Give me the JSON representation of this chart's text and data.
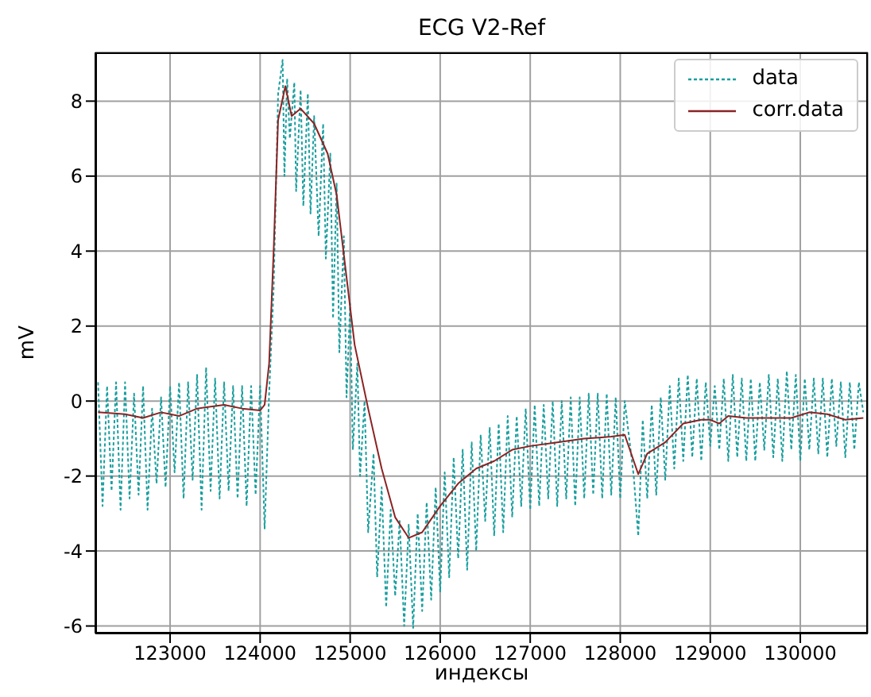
{
  "chart_data": {
    "type": "line",
    "title": "ECG V2-Ref",
    "xlabel": "индексы",
    "ylabel": "mV",
    "xlim": [
      122170,
      130750
    ],
    "ylim": [
      -6.2,
      9.3
    ],
    "xticks": [
      123000,
      124000,
      125000,
      126000,
      127000,
      128000,
      129000,
      130000
    ],
    "yticks": [
      -6,
      -4,
      -2,
      0,
      2,
      4,
      6,
      8
    ],
    "grid": true,
    "legend": "top right",
    "series": [
      {
        "name": "data",
        "color": "#1a9e9e",
        "line_style": "dotted",
        "x": [
          122200,
          122250,
          122300,
          122350,
          122400,
          122450,
          122500,
          122550,
          122600,
          122650,
          122700,
          122750,
          122800,
          122850,
          122900,
          122950,
          123000,
          123050,
          123100,
          123150,
          123200,
          123250,
          123300,
          123350,
          123400,
          123450,
          123500,
          123550,
          123600,
          123650,
          123700,
          123750,
          123800,
          123850,
          123900,
          123950,
          124000,
          124050,
          124100,
          124150,
          124200,
          124250,
          124270,
          124300,
          124330,
          124380,
          124400,
          124450,
          124480,
          124530,
          124560,
          124600,
          124650,
          124700,
          124730,
          124780,
          124810,
          124850,
          124880,
          124930,
          124960,
          125000,
          125030,
          125080,
          125110,
          125160,
          125200,
          125260,
          125300,
          125350,
          125400,
          125450,
          125500,
          125550,
          125600,
          125650,
          125700,
          125750,
          125800,
          125850,
          125900,
          125950,
          126000,
          126050,
          126100,
          126150,
          126200,
          126250,
          126300,
          126350,
          126400,
          126450,
          126500,
          126550,
          126600,
          126650,
          126700,
          126750,
          126800,
          126850,
          126900,
          126950,
          127000,
          127050,
          127100,
          127150,
          127200,
          127250,
          127300,
          127350,
          127400,
          127450,
          127500,
          127550,
          127600,
          127650,
          127700,
          127750,
          127800,
          127850,
          127900,
          127950,
          128000,
          128050,
          128150,
          128200,
          128250,
          128300,
          128350,
          128400,
          128450,
          128500,
          128550,
          128600,
          128650,
          128700,
          128750,
          128800,
          128850,
          128900,
          128950,
          129000,
          129050,
          129100,
          129150,
          129200,
          129250,
          129300,
          129350,
          129400,
          129450,
          129500,
          129550,
          129600,
          129650,
          129700,
          129750,
          129800,
          129850,
          129900,
          129950,
          130000,
          130050,
          130100,
          130150,
          130200,
          130250,
          130300,
          130350,
          130400,
          130450,
          130500,
          130550,
          130600,
          130650,
          130700
        ],
        "values": [
          0.5,
          -2.8,
          0.4,
          -2.4,
          0.5,
          -2.9,
          0.5,
          -2.6,
          0.2,
          -2.5,
          0.4,
          -2.9,
          -0.2,
          -2.2,
          0.1,
          -2.3,
          0.4,
          -1.9,
          0.5,
          -2.6,
          0.5,
          -2.1,
          0.7,
          -2.9,
          0.9,
          -2.4,
          0.6,
          -2.6,
          0.5,
          -2.4,
          0.4,
          -2.6,
          0.4,
          -2.8,
          0.4,
          -2.5,
          0.4,
          -3.4,
          0.2,
          3.0,
          8.2,
          9.1,
          6.0,
          8.6,
          7.0,
          8.5,
          5.6,
          8.3,
          5.2,
          8.2,
          5.0,
          7.6,
          4.4,
          7.4,
          3.8,
          6.6,
          2.2,
          5.8,
          1.3,
          4.4,
          0.1,
          2.6,
          -1.3,
          1.0,
          -2.0,
          0.0,
          -3.5,
          -1.4,
          -4.7,
          -2.3,
          -5.5,
          -2.9,
          -5.2,
          -3.2,
          -6.0,
          -3.3,
          -6.05,
          -3.0,
          -5.6,
          -2.7,
          -5.3,
          -2.3,
          -5.1,
          -1.9,
          -4.7,
          -1.5,
          -4.2,
          -1.3,
          -4.5,
          -1.1,
          -4.0,
          -0.9,
          -3.2,
          -0.7,
          -3.6,
          -0.6,
          -3.5,
          -0.4,
          -3.1,
          -0.4,
          -2.8,
          -0.2,
          -2.9,
          -0.1,
          -2.8,
          -0.1,
          -2.6,
          0.0,
          -2.8,
          0.0,
          -2.6,
          0.1,
          -2.8,
          0.1,
          -2.6,
          0.2,
          -2.5,
          0.2,
          -2.6,
          0.2,
          -2.5,
          0.1,
          -2.6,
          0.0,
          -2.0,
          -3.6,
          -0.5,
          -2.6,
          -0.1,
          -2.5,
          0.1,
          -2.1,
          0.4,
          -1.8,
          0.6,
          -1.6,
          0.7,
          -1.5,
          0.6,
          -1.6,
          0.5,
          -1.2,
          0.4,
          -1.3,
          0.6,
          -1.6,
          0.7,
          -1.5,
          0.6,
          -1.6,
          0.6,
          -1.6,
          0.5,
          -1.3,
          0.7,
          -1.5,
          0.6,
          -1.6,
          0.8,
          -1.3,
          0.7,
          -1.6,
          0.6,
          -1.3,
          0.6,
          -1.4,
          0.6,
          -1.5,
          0.6,
          -1.2,
          0.5,
          -1.5,
          0.5,
          -1.3,
          0.5,
          -0.3
        ]
      },
      {
        "name": "corr.data",
        "color": "#8b2323",
        "line_style": "solid",
        "x": [
          122200,
          122500,
          122700,
          122900,
          123100,
          123300,
          123600,
          123800,
          124000,
          124050,
          124100,
          124150,
          124200,
          124280,
          124350,
          124450,
          124600,
          124750,
          124850,
          124950,
          125050,
          125200,
          125350,
          125500,
          125650,
          125800,
          126000,
          126200,
          126400,
          126600,
          126800,
          127000,
          127300,
          127600,
          127900,
          128050,
          128150,
          128200,
          128300,
          128500,
          128700,
          128900,
          129000,
          129100,
          129200,
          129400,
          129600,
          129900,
          130100,
          130300,
          130500,
          130700
        ],
        "values": [
          -0.3,
          -0.35,
          -0.45,
          -0.3,
          -0.4,
          -0.2,
          -0.1,
          -0.2,
          -0.25,
          -0.1,
          1.0,
          4.0,
          7.5,
          8.4,
          7.6,
          7.8,
          7.4,
          6.6,
          5.5,
          3.5,
          1.5,
          -0.2,
          -1.8,
          -3.1,
          -3.65,
          -3.5,
          -2.8,
          -2.2,
          -1.8,
          -1.6,
          -1.3,
          -1.2,
          -1.1,
          -1.0,
          -0.95,
          -0.9,
          -1.6,
          -1.95,
          -1.4,
          -1.1,
          -0.6,
          -0.5,
          -0.5,
          -0.6,
          -0.4,
          -0.45,
          -0.45,
          -0.45,
          -0.3,
          -0.35,
          -0.5,
          -0.45
        ]
      }
    ]
  }
}
